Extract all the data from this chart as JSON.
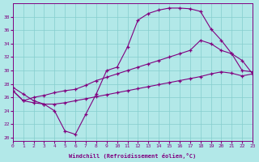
{
  "xlabel": "Windchill (Refroidissement éolien,°C)",
  "background_color": "#b2e8e8",
  "grid_color": "#85cece",
  "line_color": "#800080",
  "xlim": [
    0,
    23
  ],
  "ylim": [
    19.5,
    40
  ],
  "yticks": [
    20,
    22,
    24,
    26,
    28,
    30,
    32,
    34,
    36,
    38
  ],
  "xticks": [
    0,
    1,
    2,
    3,
    4,
    5,
    6,
    7,
    8,
    9,
    10,
    11,
    12,
    13,
    14,
    15,
    16,
    17,
    18,
    19,
    20,
    21,
    22,
    23
  ],
  "line1_x": [
    0,
    1,
    2,
    3,
    4,
    5,
    6,
    7,
    8,
    9,
    10,
    11,
    12,
    13,
    14,
    15,
    16,
    17,
    18,
    19,
    20,
    21,
    22,
    23
  ],
  "line1_y": [
    27.5,
    26.5,
    25.5,
    25.0,
    24.0,
    21.0,
    20.5,
    23.5,
    26.5,
    30.0,
    30.5,
    33.5,
    37.5,
    38.5,
    39.0,
    39.3,
    39.3,
    39.2,
    38.8,
    36.2,
    34.5,
    32.5,
    30.0,
    29.8
  ],
  "line2_x": [
    0,
    1,
    2,
    3,
    4,
    5,
    6,
    7,
    8,
    9,
    10,
    11,
    12,
    13,
    14,
    15,
    16,
    17,
    18,
    19,
    20,
    21,
    22,
    23
  ],
  "line2_y": [
    27.0,
    25.5,
    26.0,
    26.3,
    26.7,
    27.0,
    27.2,
    27.8,
    28.5,
    29.0,
    29.5,
    30.0,
    30.5,
    31.0,
    31.5,
    32.0,
    32.5,
    33.0,
    34.5,
    34.0,
    33.0,
    32.5,
    31.5,
    29.5
  ],
  "line3_x": [
    0,
    1,
    2,
    3,
    4,
    5,
    6,
    7,
    8,
    9,
    10,
    11,
    12,
    13,
    14,
    15,
    16,
    17,
    18,
    19,
    20,
    21,
    22,
    23
  ],
  "line3_y": [
    27.0,
    25.5,
    25.2,
    25.0,
    25.0,
    25.2,
    25.5,
    25.8,
    26.1,
    26.4,
    26.7,
    27.0,
    27.3,
    27.6,
    27.9,
    28.2,
    28.5,
    28.8,
    29.1,
    29.5,
    29.8,
    29.6,
    29.2,
    29.5
  ]
}
